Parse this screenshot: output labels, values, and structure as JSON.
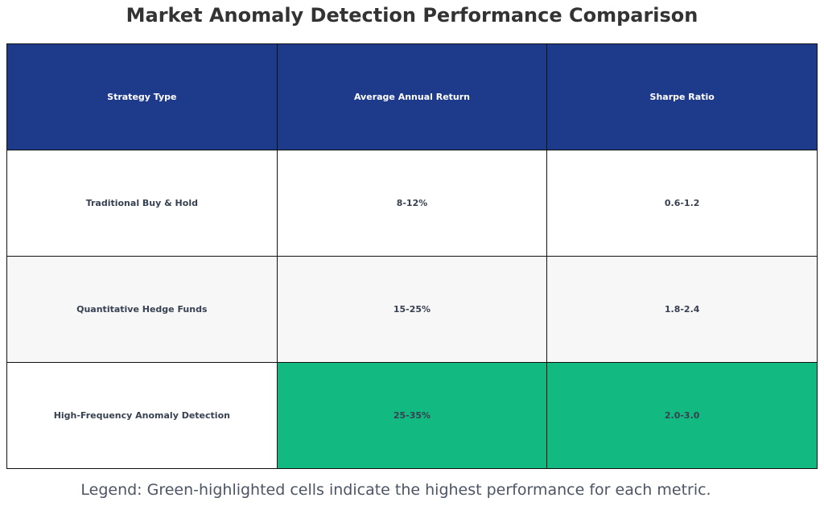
{
  "chart_data": {
    "type": "table",
    "title": "Market Anomaly Detection Performance Comparison",
    "columns": [
      "Strategy Type",
      "Average Annual Return",
      "Sharpe Ratio"
    ],
    "rows": [
      {
        "cells": [
          "Traditional Buy & Hold",
          "8-12%",
          "0.6-1.2"
        ],
        "highlight": [
          false,
          false,
          false
        ],
        "background": "#ffffff"
      },
      {
        "cells": [
          "Quantitative Hedge Funds",
          "15-25%",
          "1.8-2.4"
        ],
        "highlight": [
          false,
          false,
          false
        ],
        "background": "#f7f7f7"
      },
      {
        "cells": [
          "High-Frequency Anomaly Detection",
          "25-35%",
          "2.0-3.0"
        ],
        "highlight": [
          false,
          true,
          true
        ],
        "background": "#ffffff"
      }
    ],
    "legend": "Legend: Green-highlighted cells indicate the highest performance for each metric."
  },
  "colors": {
    "header_background": "#1e3a8a",
    "header_text": "#ffffff",
    "highlight": "#12b981",
    "cell_text": "#374151",
    "border": "#111111"
  }
}
